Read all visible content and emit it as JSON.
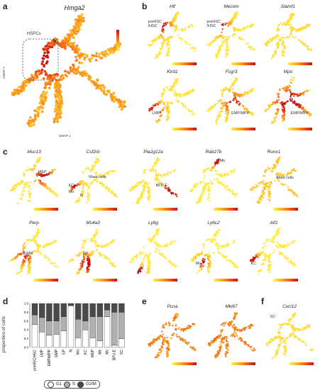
{
  "panels": {
    "a": {
      "letter": "a",
      "gene": "Hmga2",
      "annotations": {
        "hspc": "HSPCs",
        "b_ref": "b"
      },
      "xlabel": "UMAP 1",
      "ylabel": "UMAP 2"
    },
    "b": {
      "letter": "b",
      "plots": [
        {
          "gene": "Hlf",
          "annotation": "preHSC\n/HSC"
        },
        {
          "gene": "Mecom",
          "annotation": "preHSC\n/HSC"
        },
        {
          "gene": "Slamf1",
          "annotation": ""
        },
        {
          "gene": "Klrd1",
          "annotation": "LMP"
        },
        {
          "gene": "Fcgr3",
          "annotation": "EMP/MPP"
        },
        {
          "gene": "Mpo",
          "annotation": "EMP/MPP"
        }
      ]
    },
    "c": {
      "letter": "c",
      "plots": [
        {
          "gene": "Muc13",
          "annotations": [
            "MEP"
          ]
        },
        {
          "gene": "Csf2rb",
          "annotations": [
            "Mast cells",
            "KC",
            "Mo",
            "N"
          ]
        },
        {
          "gene": "Pla2g12a",
          "annotations": [
            "BFU-E"
          ]
        },
        {
          "gene": "Rab27b",
          "annotations": [
            "Mk"
          ]
        },
        {
          "gene": "Runx1",
          "annotations": [
            "Mast cells"
          ]
        },
        {
          "gene": "Perp",
          "annotations": [
            "GMP"
          ]
        },
        {
          "gene": "Ms4a3",
          "annotations": [
            "GP"
          ]
        },
        {
          "gene": "Ly6g",
          "annotations": [
            "N"
          ]
        },
        {
          "gene": "Ly6c2",
          "annotations": [
            "Mo"
          ]
        },
        {
          "gene": "Aif1",
          "annotations": [
            "KC"
          ]
        }
      ]
    },
    "d": {
      "letter": "d",
      "ylabel": "proportion of cells",
      "legend": [
        "G1",
        "S",
        "G2/M"
      ]
    },
    "e": {
      "letter": "e",
      "plots": [
        {
          "gene": "Pcna"
        },
        {
          "gene": "Mki67"
        }
      ]
    },
    "f": {
      "letter": "f",
      "plots": [
        {
          "gene": "Cxcl12",
          "annotation": "SC"
        }
      ]
    }
  },
  "chart_data": {
    "type": "bar",
    "stacked": true,
    "categories": [
      "preHSC/HSC",
      "LMP",
      "EMP/MPP",
      "GMP",
      "GP",
      "N",
      "Mo",
      "KC",
      "MEP",
      "Mk",
      "Mc",
      "BFU-E",
      "SC"
    ],
    "ylim": [
      0,
      1.0
    ],
    "yticks": [
      "0.0",
      "0.2",
      "0.4",
      "0.6",
      "0.8",
      "1.0"
    ],
    "series": [
      {
        "name": "G1",
        "color": "#ffffff",
        "values": [
          0.52,
          0.35,
          0.28,
          0.3,
          0.38,
          0.95,
          0.22,
          0.4,
          0.22,
          0.15,
          0.7,
          0.05,
          0.2
        ]
      },
      {
        "name": "S",
        "color": "#b0b0b0",
        "values": [
          0.22,
          0.33,
          0.32,
          0.3,
          0.32,
          0.0,
          0.42,
          0.2,
          0.48,
          0.55,
          0.15,
          0.75,
          0.6
        ]
      },
      {
        "name": "G2/M",
        "color": "#4a4a4a",
        "values": [
          0.26,
          0.32,
          0.4,
          0.4,
          0.3,
          0.05,
          0.36,
          0.4,
          0.3,
          0.3,
          0.15,
          0.2,
          0.2
        ]
      }
    ]
  }
}
